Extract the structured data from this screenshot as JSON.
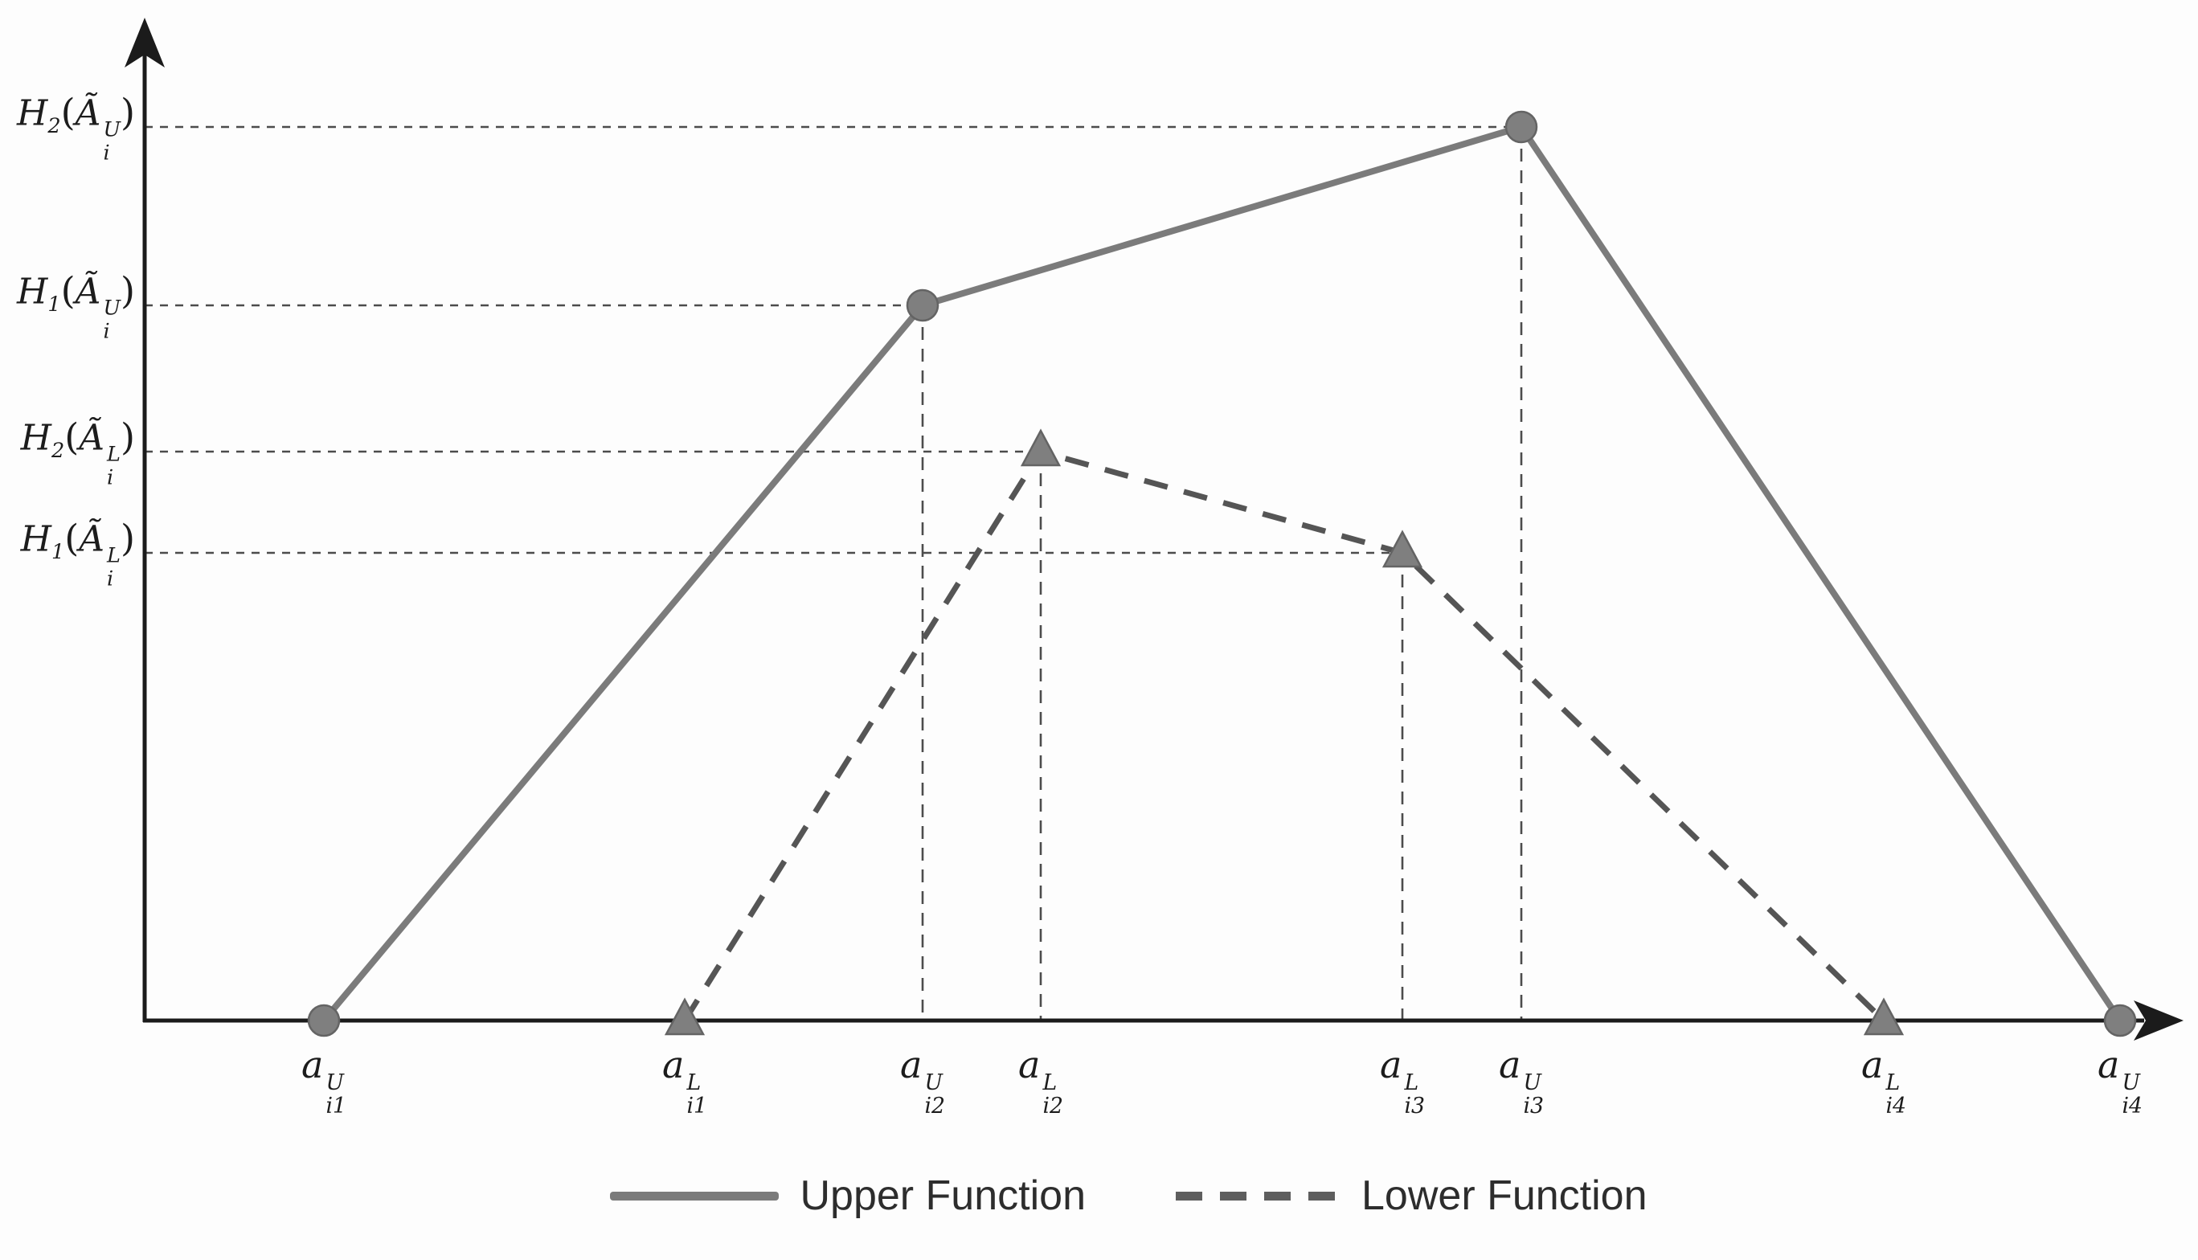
{
  "palette": {
    "background": "#fdfdfd",
    "axis": "#1b1b1b",
    "upper": "#7b7b7b",
    "lower": "#555555",
    "marker_fill": "#7f7f7f",
    "marker_edge": "#646464",
    "guide": "#4c4c4c",
    "label_text": "#1c1c1c",
    "legend_text": "#2d2d2d"
  },
  "chart_data": {
    "type": "line",
    "title": "",
    "description": "Upper and lower membership functions of an interval type-2 trapezoidal fuzzy number",
    "grid": false,
    "x_axis": {
      "label": "",
      "arrow": true,
      "ticks": [
        "a_i1_U",
        "a_i1_L",
        "a_i2_U",
        "a_i2_L",
        "a_i3_L",
        "a_i3_U",
        "a_i4_L",
        "a_i4_U"
      ]
    },
    "y_axis": {
      "label": "",
      "arrow": true,
      "levels": [
        "H2_U",
        "H1_U",
        "H2_L",
        "H1_L"
      ]
    },
    "series": [
      {
        "name": "Upper Function",
        "style": "solid",
        "marker": "circle",
        "palette_key": "upper",
        "points": [
          {
            "x": "a_i1_U",
            "y": "0"
          },
          {
            "x": "a_i2_U",
            "y": "H1_U"
          },
          {
            "x": "a_i3_U",
            "y": "H2_U"
          },
          {
            "x": "a_i4_U",
            "y": "0"
          }
        ]
      },
      {
        "name": "Lower Function",
        "style": "dashed",
        "marker": "triangle",
        "palette_key": "lower",
        "points": [
          {
            "x": "a_i1_L",
            "y": "0"
          },
          {
            "x": "a_i2_L",
            "y": "H2_L"
          },
          {
            "x": "a_i3_L",
            "y": "H1_L"
          },
          {
            "x": "a_i4_L",
            "y": "0"
          }
        ]
      }
    ],
    "tick_labels": {
      "a_i1_U": {
        "base": "a",
        "sup": "U",
        "sub": "i1"
      },
      "a_i1_L": {
        "base": "a",
        "sup": "L",
        "sub": "i1"
      },
      "a_i2_U": {
        "base": "a",
        "sup": "U",
        "sub": "i2"
      },
      "a_i2_L": {
        "base": "a",
        "sup": "L",
        "sub": "i2"
      },
      "a_i3_L": {
        "base": "a",
        "sup": "L",
        "sub": "i3"
      },
      "a_i3_U": {
        "base": "a",
        "sup": "U",
        "sub": "i3"
      },
      "a_i4_L": {
        "base": "a",
        "sup": "L",
        "sub": "i4"
      },
      "a_i4_U": {
        "base": "a",
        "sup": "U",
        "sub": "i4"
      }
    },
    "level_labels": {
      "H2_U": {
        "fn": "H",
        "fn_sub": "2",
        "open": "(",
        "arg": "Ã",
        "arg_sup": "U",
        "arg_sub": "i",
        "close": ")"
      },
      "H1_U": {
        "fn": "H",
        "fn_sub": "1",
        "open": "(",
        "arg": "Ã",
        "arg_sup": "U",
        "arg_sub": "i",
        "close": ")"
      },
      "H2_L": {
        "fn": "H",
        "fn_sub": "2",
        "open": "(",
        "arg": "Ã",
        "arg_sup": "L",
        "arg_sub": "i",
        "close": ")"
      },
      "H1_L": {
        "fn": "H",
        "fn_sub": "1",
        "open": "(",
        "arg": "Ã",
        "arg_sup": "L",
        "arg_sub": "i",
        "close": ")"
      }
    },
    "legend_position": "bottom-center"
  },
  "legend": {
    "items": [
      {
        "label": "Upper Function",
        "swatch": "solid"
      },
      {
        "label": "Lower Function",
        "swatch": "dashed"
      }
    ]
  }
}
